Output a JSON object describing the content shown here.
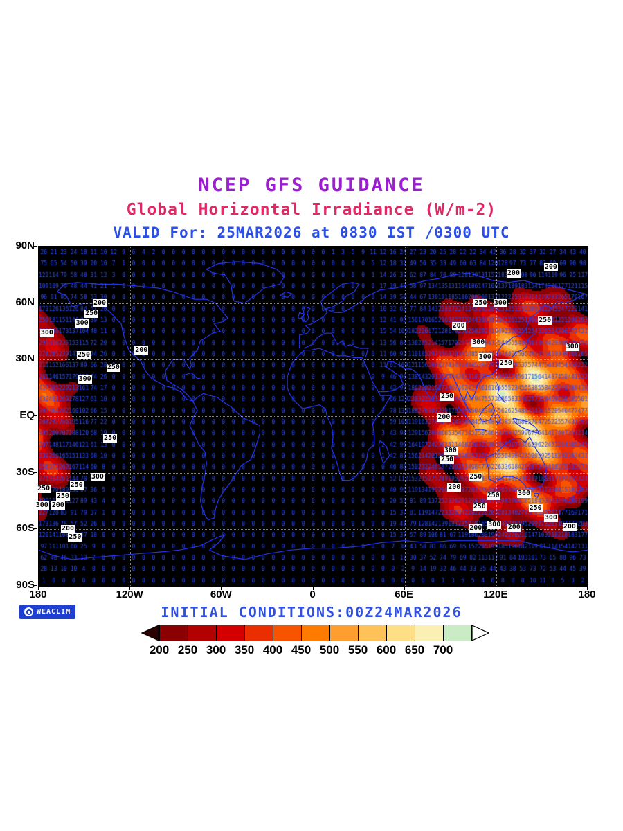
{
  "header": {
    "title": "NCEP GFS GUIDANCE",
    "subtitle": "Global Horizontal Irradiance (W/m-2)",
    "valid_line": "VALID For: 25MAR2026 at 0830 IST /0300 UTC",
    "title_color": "#9b1fd1",
    "subtitle_color": "#e02864",
    "valid_color": "#2b50e8"
  },
  "footer": {
    "initial_conditions": "INITIAL CONDITIONS:00Z24MAR2026",
    "initial_conditions_color": "#3050e0",
    "logo_text": "WEACLIM",
    "logo_bg_color": "#1f3fd0"
  },
  "map": {
    "background": "#000000",
    "coastline_color": "#2233ee",
    "value_text_color": "#2a4cff",
    "gridline_style": "dotted white every 30 deg lat / 60 deg lon",
    "lat_labels": [
      "90N",
      "60N",
      "30N",
      "EQ",
      "30S",
      "60S",
      "90S"
    ],
    "lon_labels": [
      "180",
      "120W",
      "60W",
      "0",
      "60E",
      "120E",
      "180"
    ],
    "contour_labels": [
      {
        "text": "200",
        "fx": 0.111,
        "fy": 0.167
      },
      {
        "text": "250",
        "fx": 0.096,
        "fy": 0.198
      },
      {
        "text": "300",
        "fx": 0.079,
        "fy": 0.227
      },
      {
        "text": "300",
        "fx": 0.015,
        "fy": 0.255
      },
      {
        "text": "200",
        "fx": 0.187,
        "fy": 0.306
      },
      {
        "text": "250",
        "fx": 0.082,
        "fy": 0.32
      },
      {
        "text": "250",
        "fx": 0.136,
        "fy": 0.357
      },
      {
        "text": "300",
        "fx": 0.084,
        "fy": 0.392
      },
      {
        "text": "250",
        "fx": 0.13,
        "fy": 0.565
      },
      {
        "text": "300",
        "fx": 0.107,
        "fy": 0.68
      },
      {
        "text": "250",
        "fx": 0.069,
        "fy": 0.704
      },
      {
        "text": "250",
        "fx": 0.009,
        "fy": 0.714
      },
      {
        "text": "250",
        "fx": 0.044,
        "fy": 0.737
      },
      {
        "text": "300",
        "fx": 0.006,
        "fy": 0.763
      },
      {
        "text": "200",
        "fx": 0.035,
        "fy": 0.763
      },
      {
        "text": "200",
        "fx": 0.053,
        "fy": 0.833
      },
      {
        "text": "250",
        "fx": 0.066,
        "fy": 0.857
      },
      {
        "text": "200",
        "fx": 0.933,
        "fy": 0.061
      },
      {
        "text": "200",
        "fx": 0.865,
        "fy": 0.08
      },
      {
        "text": "250",
        "fx": 0.805,
        "fy": 0.167
      },
      {
        "text": "300",
        "fx": 0.841,
        "fy": 0.167
      },
      {
        "text": "250",
        "fx": 0.922,
        "fy": 0.218
      },
      {
        "text": "200",
        "fx": 0.765,
        "fy": 0.235
      },
      {
        "text": "300",
        "fx": 0.801,
        "fy": 0.284
      },
      {
        "text": "300",
        "fx": 0.972,
        "fy": 0.296
      },
      {
        "text": "300",
        "fx": 0.813,
        "fy": 0.327
      },
      {
        "text": "250",
        "fx": 0.851,
        "fy": 0.345
      },
      {
        "text": "250",
        "fx": 0.744,
        "fy": 0.443
      },
      {
        "text": "200",
        "fx": 0.738,
        "fy": 0.504
      },
      {
        "text": "300",
        "fx": 0.75,
        "fy": 0.602
      },
      {
        "text": "250",
        "fx": 0.744,
        "fy": 0.629
      },
      {
        "text": "250",
        "fx": 0.796,
        "fy": 0.68
      },
      {
        "text": "200",
        "fx": 0.757,
        "fy": 0.71
      },
      {
        "text": "250",
        "fx": 0.828,
        "fy": 0.735
      },
      {
        "text": "300",
        "fx": 0.884,
        "fy": 0.729
      },
      {
        "text": "250",
        "fx": 0.803,
        "fy": 0.767
      },
      {
        "text": "250",
        "fx": 0.905,
        "fy": 0.771
      },
      {
        "text": "300",
        "fx": 0.83,
        "fy": 0.82
      },
      {
        "text": "200",
        "fx": 0.866,
        "fy": 0.829
      },
      {
        "text": "200",
        "fx": 0.796,
        "fy": 0.831
      },
      {
        "text": "300",
        "fx": 0.933,
        "fy": 0.8
      },
      {
        "text": "200",
        "fx": 0.967,
        "fy": 0.827
      }
    ]
  },
  "chart_data": {
    "type": "heatmap",
    "title": "NCEP GFS GUIDANCE",
    "subtitle": "Global Horizontal Irradiance (W/m-2)",
    "field": "Global Horizontal Irradiance",
    "units": "W/m-2",
    "valid": "25MAR2026 at 0830 IST / 0300 UTC",
    "initialized": "00Z 24MAR2026",
    "projection": "equirectangular global (lat 90S-90N, lon 180W-180E)",
    "x_axis": {
      "tick_labels": [
        "180",
        "120W",
        "60W",
        "0",
        "60E",
        "120E",
        "180"
      ],
      "range_deg": [
        -180,
        180
      ]
    },
    "y_axis": {
      "tick_labels": [
        "90N",
        "60N",
        "30N",
        "EQ",
        "30S",
        "60S",
        "90S"
      ],
      "range_deg": [
        -90,
        90
      ]
    },
    "grid": "dotted, 30 deg lat x 60 deg lon",
    "point_values": "gridpoint irradiance values printed in blue; 0 over the night side (~130W westward to ~45E), rising to 700+ near the subsolar longitude (~135E)",
    "contour_labels_w_m2": [
      200,
      250,
      300
    ],
    "colorbar": {
      "tick_labels": [
        "200",
        "250",
        "300",
        "350",
        "400",
        "450",
        "500",
        "550",
        "600",
        "650",
        "700"
      ],
      "segment_colors": [
        "#8b0000",
        "#b30000",
        "#d40000",
        "#ea2e00",
        "#f85400",
        "#ff7b00",
        "#ff9e2e",
        "#ffc258",
        "#ffdf86",
        "#faf0b4",
        "#c9ecc4"
      ],
      "under_arrow_color": "#2d0000",
      "over_arrow_color": "#ffffff",
      "position": "bottom, horizontal"
    }
  }
}
